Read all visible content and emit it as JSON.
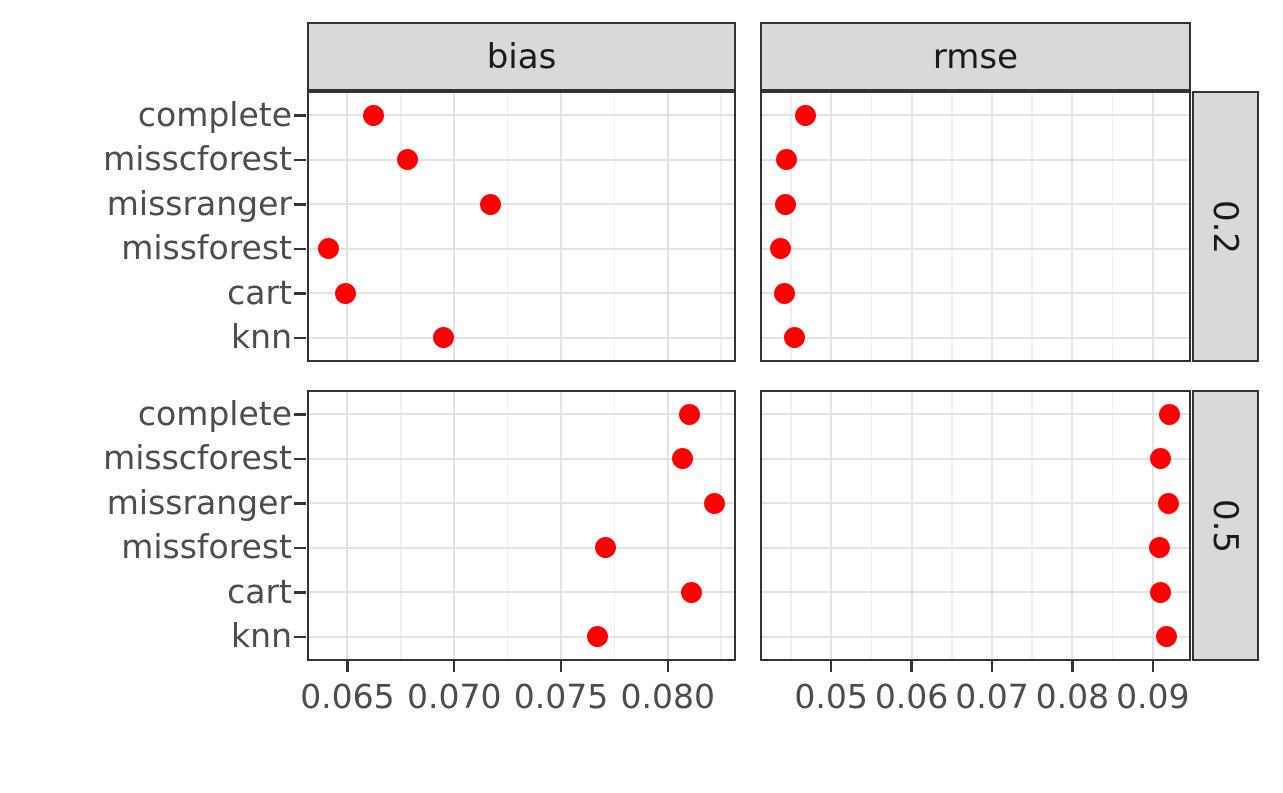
{
  "chart_data": {
    "type": "scatter",
    "title": "",
    "xlabel": "",
    "ylabel": "",
    "legend": "none",
    "grid": "major+minor",
    "categories": [
      "complete",
      "misscforest",
      "missranger",
      "missforest",
      "cart",
      "knn"
    ],
    "facets": {
      "cols": [
        "bias",
        "rmse"
      ],
      "rows": [
        "0.2",
        "0.5"
      ]
    },
    "x_axes": [
      {
        "facet_col": "bias",
        "xlim": [
          0.0632,
          0.0831
        ],
        "major_ticks": [
          0.065,
          0.07,
          0.075,
          0.08
        ],
        "tick_labels": [
          "0.065",
          "0.070",
          "0.075",
          "0.080"
        ],
        "minor_ticks": [
          0.0675,
          0.0725,
          0.0775,
          0.0825
        ]
      },
      {
        "facet_col": "rmse",
        "xlim": [
          0.0414,
          0.0945
        ],
        "major_ticks": [
          0.05,
          0.06,
          0.07,
          0.08,
          0.09
        ],
        "tick_labels": [
          "0.05",
          "0.06",
          "0.07",
          "0.08",
          "0.09"
        ],
        "minor_ticks": [
          0.045,
          0.055,
          0.065,
          0.075,
          0.085
        ]
      }
    ],
    "series": [
      {
        "facet_col": "bias",
        "facet_row": "0.2",
        "values": [
          0.0662,
          0.0678,
          0.0717,
          0.0641,
          0.0649,
          0.0695
        ]
      },
      {
        "facet_col": "rmse",
        "facet_row": "0.2",
        "values": [
          0.0468,
          0.0444,
          0.0443,
          0.0437,
          0.0442,
          0.0455
        ]
      },
      {
        "facet_col": "bias",
        "facet_row": "0.5",
        "values": [
          0.081,
          0.0807,
          0.0822,
          0.0771,
          0.0811,
          0.0767
        ]
      },
      {
        "facet_col": "rmse",
        "facet_row": "0.5",
        "values": [
          0.0921,
          0.0909,
          0.092,
          0.0908,
          0.091,
          0.0917
        ]
      }
    ]
  },
  "colors": {
    "background": "#FFFFFF",
    "panel_bg": "#FFFFFF",
    "strip_bg": "#D9D9D9",
    "strip_border": "#333333",
    "panel_border": "#333333",
    "grid_major": "#E3E3E3",
    "grid_minor": "#EFEFEF",
    "axis_text": "#4D4D4D",
    "strip_text": "#1A1A1A",
    "tick_color": "#333333",
    "point": "#FF0000"
  }
}
